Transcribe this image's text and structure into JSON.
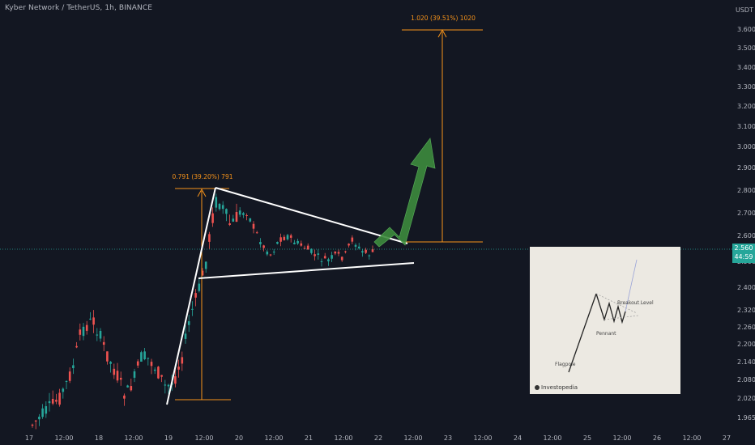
{
  "chart": {
    "title": "Kyber Network / TetherUS, 1h, BINANCE",
    "quote_currency": "USDT",
    "price_ticks": [
      "3.600",
      "3.500",
      "3.400",
      "3.300",
      "3.200",
      "3.100",
      "3.000",
      "2.900",
      "2.800",
      "2.700",
      "2.600",
      "2.500",
      "2.400",
      "2.320",
      "2.260",
      "2.200",
      "2.140",
      "2.080",
      "2.020",
      "1.965"
    ],
    "time_ticks": [
      "17",
      "12:00",
      "18",
      "12:00",
      "19",
      "12:00",
      "20",
      "12:00",
      "21",
      "12:00",
      "22",
      "12:00",
      "23",
      "12:00",
      "24",
      "12:00",
      "25",
      "12:00",
      "26",
      "12:00",
      "27"
    ],
    "current_price": "2.560",
    "countdown": "44:59",
    "measure_flagpole": "0.791 (39.20%) 791",
    "measure_target": "1.020 (39.51%) 1020"
  },
  "colors": {
    "background": "#131722",
    "up": "#26a69a",
    "down": "#ef5350",
    "measure": "#f7931a",
    "arrow": "#3d8b3d",
    "trendline": "#ffffff"
  },
  "inset": {
    "flagpole_label": "Flagpole",
    "pennant_label": "Pennant",
    "breakout_label": "Breakout Level",
    "brand": "Investopedia"
  }
}
